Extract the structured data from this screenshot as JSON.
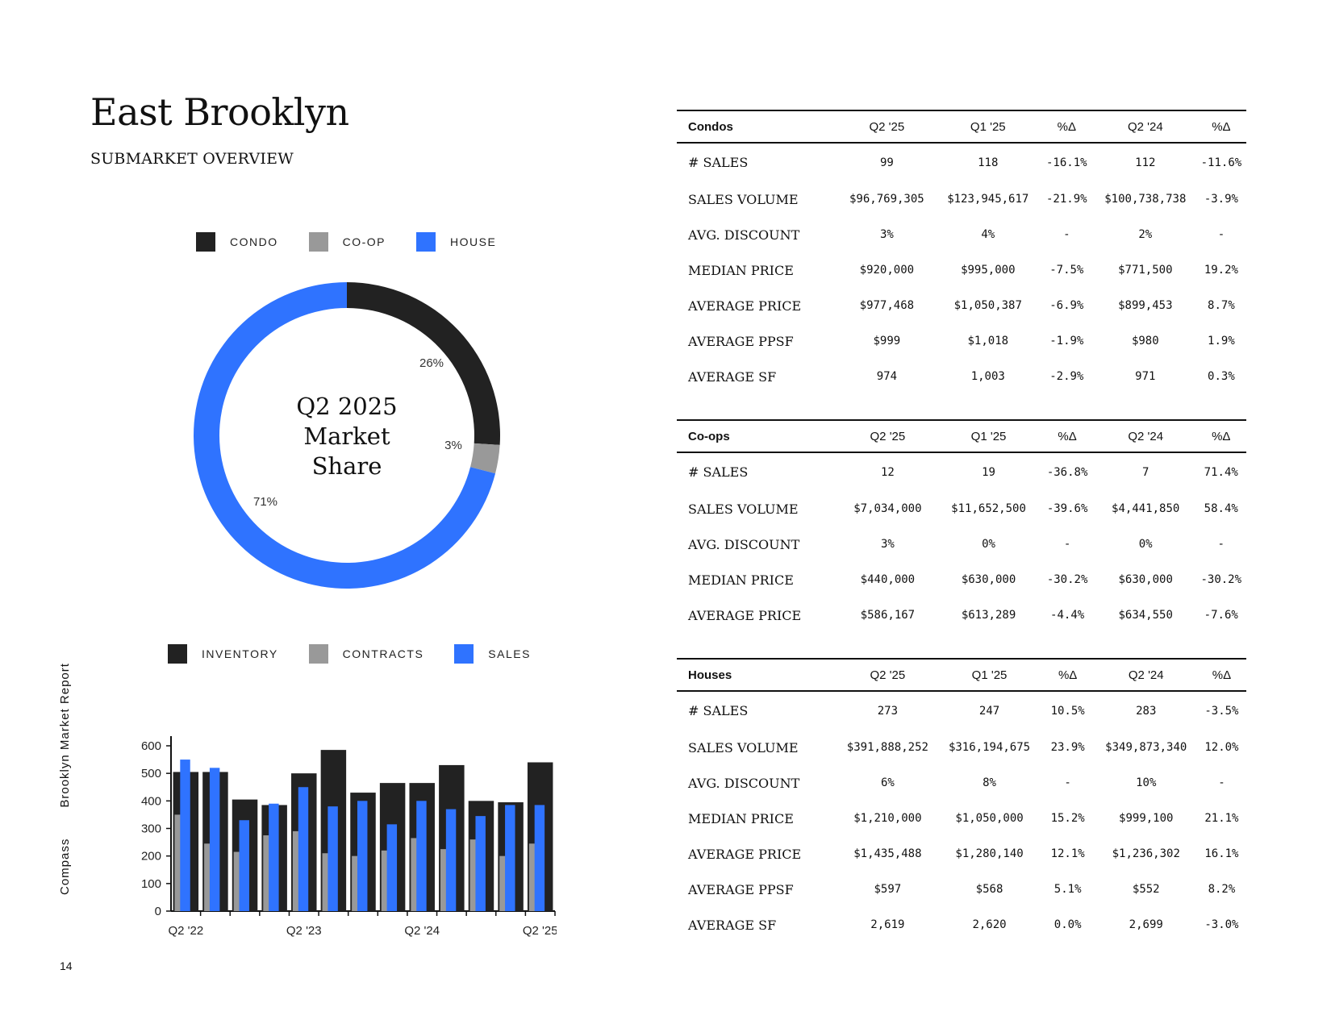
{
  "header": {
    "title": "East Brooklyn",
    "subtitle": "SUBMARKET OVERVIEW"
  },
  "side_label": {
    "left": "Compass",
    "right": "Brooklyn Market Report"
  },
  "page_number": "14",
  "colors": {
    "condo": "#222222",
    "coop": "#999999",
    "house": "#2f73ff",
    "inventory": "#222222",
    "contracts": "#999999",
    "sales": "#2f73ff"
  },
  "donut_legend": [
    "CONDO",
    "CO-OP",
    "HOUSE"
  ],
  "bar_legend": [
    "INVENTORY",
    "CONTRACTS",
    "SALES"
  ],
  "chart_data": [
    {
      "type": "pie",
      "center_label": [
        "Q2 2025",
        "Market",
        "Share"
      ],
      "categories": [
        "CONDO",
        "CO-OP",
        "HOUSE"
      ],
      "values": [
        26,
        3,
        71
      ],
      "labels": [
        "26%",
        "3%",
        "71%"
      ]
    },
    {
      "type": "bar",
      "x": [
        "Q2 '22",
        "Q3 '22",
        "Q4 '22",
        "Q1 '23",
        "Q2 '23",
        "Q3 '23",
        "Q4 '23",
        "Q1 '24",
        "Q2 '24",
        "Q3 '24",
        "Q4 '24",
        "Q1 '25",
        "Q2 '25"
      ],
      "tick_labels": [
        "Q2 '22",
        "Q2 '23",
        "Q2 '24",
        "Q2 '25"
      ],
      "series": [
        {
          "name": "INVENTORY",
          "values": [
            505,
            505,
            405,
            385,
            500,
            585,
            430,
            465,
            465,
            530,
            400,
            395,
            540
          ]
        },
        {
          "name": "CONTRACTS",
          "values": [
            350,
            245,
            215,
            275,
            290,
            210,
            200,
            220,
            265,
            225,
            260,
            200,
            245
          ]
        },
        {
          "name": "SALES",
          "values": [
            550,
            520,
            330,
            390,
            450,
            380,
            400,
            315,
            400,
            370,
            345,
            385,
            385
          ]
        }
      ],
      "ylim": [
        0,
        600
      ],
      "yticks": [
        0,
        100,
        200,
        300,
        400,
        500,
        600
      ]
    }
  ],
  "tables": [
    {
      "name": "Condos",
      "headers": [
        "Q2 '25",
        "Q1 '25",
        "%Δ",
        "Q2 '24",
        "%Δ"
      ],
      "rows": [
        [
          "# SALES",
          "99",
          "118",
          "-16.1%",
          "112",
          "-11.6%"
        ],
        [
          "SALES VOLUME",
          "$96,769,305",
          "$123,945,617",
          "-21.9%",
          "$100,738,738",
          "-3.9%"
        ],
        [
          "AVG. DISCOUNT",
          "3%",
          "4%",
          "-",
          "2%",
          "-"
        ],
        [
          "MEDIAN PRICE",
          "$920,000",
          "$995,000",
          "-7.5%",
          "$771,500",
          "19.2%"
        ],
        [
          "AVERAGE PRICE",
          "$977,468",
          "$1,050,387",
          "-6.9%",
          "$899,453",
          "8.7%"
        ],
        [
          "AVERAGE PPSF",
          "$999",
          "$1,018",
          "-1.9%",
          "$980",
          "1.9%"
        ],
        [
          "AVERAGE SF",
          "974",
          "1,003",
          "-2.9%",
          "971",
          "0.3%"
        ]
      ]
    },
    {
      "name": "Co-ops",
      "headers": [
        "Q2 '25",
        "Q1 '25",
        "%Δ",
        "Q2 '24",
        "%Δ"
      ],
      "rows": [
        [
          "# SALES",
          "12",
          "19",
          "-36.8%",
          "7",
          "71.4%"
        ],
        [
          "SALES VOLUME",
          "$7,034,000",
          "$11,652,500",
          "-39.6%",
          "$4,441,850",
          "58.4%"
        ],
        [
          "AVG. DISCOUNT",
          "3%",
          "0%",
          "-",
          "0%",
          "-"
        ],
        [
          "MEDIAN PRICE",
          "$440,000",
          "$630,000",
          "-30.2%",
          "$630,000",
          "-30.2%"
        ],
        [
          "AVERAGE PRICE",
          "$586,167",
          "$613,289",
          "-4.4%",
          "$634,550",
          "-7.6%"
        ]
      ]
    },
    {
      "name": "Houses",
      "headers": [
        "Q2 '25",
        "Q1 '25",
        "%Δ",
        "Q2 '24",
        "%Δ"
      ],
      "rows": [
        [
          "# SALES",
          "273",
          "247",
          "10.5%",
          "283",
          "-3.5%"
        ],
        [
          "SALES VOLUME",
          "$391,888,252",
          "$316,194,675",
          "23.9%",
          "$349,873,340",
          "12.0%"
        ],
        [
          "AVG. DISCOUNT",
          "6%",
          "8%",
          "-",
          "10%",
          "-"
        ],
        [
          "MEDIAN PRICE",
          "$1,210,000",
          "$1,050,000",
          "15.2%",
          "$999,100",
          "21.1%"
        ],
        [
          "AVERAGE PRICE",
          "$1,435,488",
          "$1,280,140",
          "12.1%",
          "$1,236,302",
          "16.1%"
        ],
        [
          "AVERAGE PPSF",
          "$597",
          "$568",
          "5.1%",
          "$552",
          "8.2%"
        ],
        [
          "AVERAGE SF",
          "2,619",
          "2,620",
          "0.0%",
          "2,699",
          "-3.0%"
        ]
      ]
    }
  ]
}
